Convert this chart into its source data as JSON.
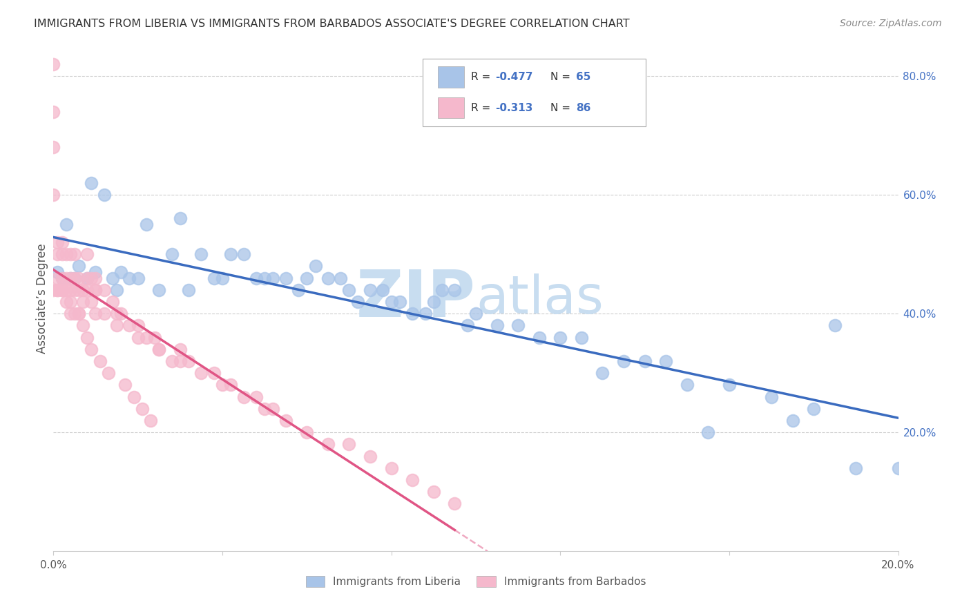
{
  "title": "IMMIGRANTS FROM LIBERIA VS IMMIGRANTS FROM BARBADOS ASSOCIATE'S DEGREE CORRELATION CHART",
  "source": "Source: ZipAtlas.com",
  "ylabel": "Associate’s Degree",
  "xlim": [
    0.0,
    0.2
  ],
  "ylim": [
    0.0,
    0.85
  ],
  "liberia_R": "-0.477",
  "liberia_N": "65",
  "barbados_R": "-0.313",
  "barbados_N": "86",
  "liberia_color": "#a8c4e8",
  "barbados_color": "#f5b8cc",
  "liberia_line_color": "#3a6bbf",
  "barbados_line_color": "#e05585",
  "watermark_color": "#c8ddf0",
  "liberia_x": [
    0.001,
    0.002,
    0.003,
    0.004,
    0.005,
    0.006,
    0.008,
    0.009,
    0.01,
    0.012,
    0.014,
    0.015,
    0.016,
    0.018,
    0.02,
    0.022,
    0.025,
    0.028,
    0.03,
    0.032,
    0.035,
    0.038,
    0.04,
    0.042,
    0.045,
    0.048,
    0.05,
    0.052,
    0.055,
    0.058,
    0.06,
    0.062,
    0.065,
    0.068,
    0.07,
    0.072,
    0.075,
    0.078,
    0.08,
    0.082,
    0.085,
    0.088,
    0.09,
    0.092,
    0.095,
    0.098,
    0.1,
    0.105,
    0.11,
    0.115,
    0.12,
    0.125,
    0.13,
    0.135,
    0.14,
    0.145,
    0.15,
    0.16,
    0.17,
    0.18,
    0.19,
    0.2,
    0.175,
    0.155,
    0.185
  ],
  "liberia_y": [
    0.47,
    0.46,
    0.55,
    0.46,
    0.46,
    0.48,
    0.46,
    0.62,
    0.47,
    0.6,
    0.46,
    0.44,
    0.47,
    0.46,
    0.46,
    0.55,
    0.44,
    0.5,
    0.56,
    0.44,
    0.5,
    0.46,
    0.46,
    0.5,
    0.5,
    0.46,
    0.46,
    0.46,
    0.46,
    0.44,
    0.46,
    0.48,
    0.46,
    0.46,
    0.44,
    0.42,
    0.44,
    0.44,
    0.42,
    0.42,
    0.4,
    0.4,
    0.42,
    0.44,
    0.44,
    0.38,
    0.4,
    0.38,
    0.38,
    0.36,
    0.36,
    0.36,
    0.3,
    0.32,
    0.32,
    0.32,
    0.28,
    0.28,
    0.26,
    0.24,
    0.14,
    0.14,
    0.22,
    0.2,
    0.38
  ],
  "barbados_x": [
    0.0,
    0.0,
    0.0,
    0.0,
    0.001,
    0.001,
    0.001,
    0.001,
    0.002,
    0.002,
    0.002,
    0.002,
    0.003,
    0.003,
    0.003,
    0.004,
    0.004,
    0.004,
    0.004,
    0.005,
    0.005,
    0.005,
    0.006,
    0.006,
    0.006,
    0.007,
    0.007,
    0.008,
    0.008,
    0.008,
    0.009,
    0.009,
    0.01,
    0.01,
    0.01,
    0.012,
    0.012,
    0.014,
    0.015,
    0.016,
    0.018,
    0.02,
    0.022,
    0.024,
    0.025,
    0.028,
    0.03,
    0.032,
    0.035,
    0.038,
    0.04,
    0.042,
    0.045,
    0.048,
    0.05,
    0.052,
    0.055,
    0.06,
    0.065,
    0.07,
    0.075,
    0.08,
    0.085,
    0.09,
    0.095,
    0.01,
    0.015,
    0.02,
    0.025,
    0.03,
    0.0,
    0.001,
    0.002,
    0.003,
    0.004,
    0.005,
    0.006,
    0.007,
    0.008,
    0.009,
    0.011,
    0.013,
    0.017,
    0.019,
    0.021,
    0.023
  ],
  "barbados_y": [
    0.82,
    0.74,
    0.68,
    0.44,
    0.52,
    0.5,
    0.46,
    0.44,
    0.52,
    0.5,
    0.46,
    0.44,
    0.5,
    0.46,
    0.44,
    0.5,
    0.46,
    0.44,
    0.4,
    0.5,
    0.46,
    0.44,
    0.46,
    0.44,
    0.4,
    0.44,
    0.42,
    0.5,
    0.46,
    0.44,
    0.46,
    0.42,
    0.46,
    0.44,
    0.4,
    0.44,
    0.4,
    0.42,
    0.4,
    0.4,
    0.38,
    0.38,
    0.36,
    0.36,
    0.34,
    0.32,
    0.34,
    0.32,
    0.3,
    0.3,
    0.28,
    0.28,
    0.26,
    0.26,
    0.24,
    0.24,
    0.22,
    0.2,
    0.18,
    0.18,
    0.16,
    0.14,
    0.12,
    0.1,
    0.08,
    0.44,
    0.38,
    0.36,
    0.34,
    0.32,
    0.6,
    0.44,
    0.44,
    0.42,
    0.42,
    0.4,
    0.4,
    0.38,
    0.36,
    0.34,
    0.32,
    0.3,
    0.28,
    0.26,
    0.24,
    0.22
  ]
}
